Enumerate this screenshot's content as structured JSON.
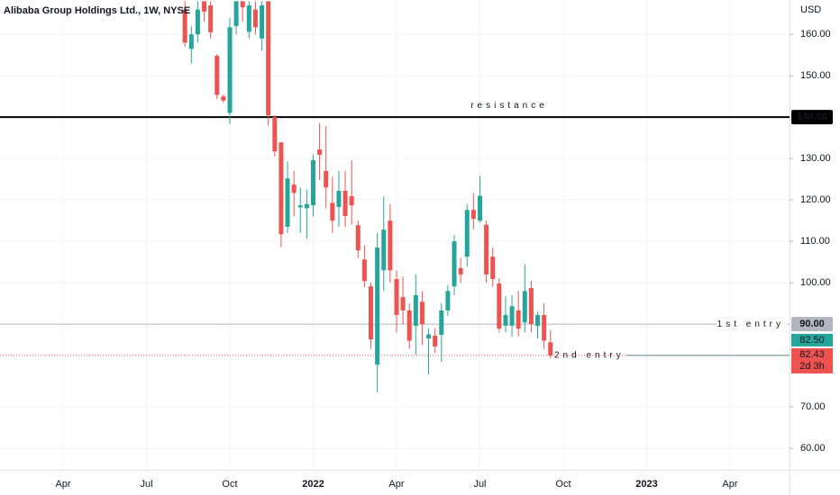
{
  "chart_data": {
    "type": "candlestick",
    "title": "Alibaba Group Holdings Ltd., 1W, NYSE",
    "currency": "USD",
    "up_color": "#26a69a",
    "down_color": "#ef5350",
    "grid": true,
    "ylim": [
      54.8,
      168.3
    ],
    "yticks": [
      {
        "value": 60,
        "label": "60.00"
      },
      {
        "value": 70,
        "label": "70.00"
      },
      {
        "value": 100,
        "label": "100.00"
      },
      {
        "value": 110,
        "label": "110.00"
      },
      {
        "value": 120,
        "label": "120.00"
      },
      {
        "value": 130,
        "label": "130.00"
      },
      {
        "value": 150,
        "label": "150.00"
      },
      {
        "value": 160,
        "label": "160.00"
      }
    ],
    "categories": [
      null,
      null,
      null,
      null,
      null,
      null,
      null,
      null,
      null,
      "Apr",
      null,
      null,
      null,
      null,
      null,
      null,
      null,
      null,
      null,
      null,
      null,
      null,
      "Jul",
      null,
      null,
      null,
      null,
      null,
      null,
      null,
      null,
      null,
      null,
      null,
      null,
      "Oct",
      null,
      null,
      null,
      null,
      null,
      null,
      null,
      null,
      null,
      null,
      null,
      null,
      "2022",
      null,
      null,
      null,
      null,
      null,
      null,
      null,
      null,
      null,
      null,
      null,
      null,
      "Apr",
      null,
      null,
      null,
      null,
      null,
      null,
      null,
      null,
      null,
      null,
      null,
      null,
      "Jul",
      null,
      null,
      null,
      null,
      null,
      null,
      null,
      null,
      null,
      null,
      null,
      null,
      "Oct",
      null,
      null,
      null,
      null,
      null,
      null,
      null,
      null,
      null,
      null,
      null,
      null,
      "2023",
      null,
      null,
      null,
      null,
      null,
      null,
      null,
      null,
      null,
      null,
      null,
      null,
      "Apr",
      null,
      null,
      null,
      null,
      null,
      null,
      null,
      null,
      null
    ],
    "open": [
      null,
      null,
      null,
      null,
      null,
      null,
      null,
      null,
      null,
      null,
      null,
      null,
      null,
      null,
      null,
      null,
      null,
      null,
      null,
      null,
      null,
      null,
      null,
      null,
      null,
      null,
      null,
      null,
      166,
      156.5,
      160,
      168,
      167,
      154.8,
      145,
      141,
      162,
      168,
      160.6,
      166,
      159,
      168,
      140,
      133.9,
      113.5,
      123.7,
      118.2,
      118,
      118.7,
      132.2,
      127,
      119.3,
      118.3,
      122.2,
      120.9,
      113.9,
      105.6,
      99.1,
      80.2,
      103,
      115,
      100.9,
      96.5,
      93.3,
      89.6,
      95.4,
      86.5,
      87.2,
      87.4,
      93.3,
      99.1,
      103.5,
      106.3,
      117.6,
      115,
      114,
      106.3,
      99.8,
      89.6,
      89.6,
      93.3,
      90.4,
      98.7,
      89.6,
      92.2,
      85.6,
      null,
      null,
      null,
      null,
      null,
      null,
      null,
      null,
      null,
      null,
      null,
      null,
      null,
      null,
      null,
      null,
      null,
      null,
      null,
      null,
      null,
      null,
      null,
      null,
      null,
      null,
      null,
      null,
      null,
      null,
      null,
      null,
      null,
      null,
      null,
      null,
      null
    ],
    "high": [
      null,
      null,
      null,
      null,
      null,
      null,
      null,
      null,
      null,
      null,
      null,
      null,
      null,
      null,
      null,
      null,
      null,
      null,
      null,
      null,
      null,
      null,
      null,
      null,
      null,
      null,
      null,
      null,
      168,
      162,
      168,
      168,
      168,
      155.2,
      145.5,
      164,
      168,
      168,
      168,
      168,
      168,
      168,
      140.5,
      134,
      129.3,
      127,
      123,
      122.5,
      131,
      138.5,
      137.8,
      125.6,
      127,
      127,
      129.6,
      115,
      109,
      100,
      112,
      120.8,
      119,
      103,
      101.5,
      95,
      102,
      98,
      89,
      89,
      95,
      99.5,
      111.5,
      106,
      119,
      121.6,
      125.8,
      115,
      108.5,
      101,
      96.7,
      97,
      98,
      104.5,
      100.5,
      93,
      95,
      88.5,
      null,
      null,
      null,
      null,
      null,
      null,
      null,
      null,
      null,
      null,
      null,
      null,
      null,
      null,
      null,
      null,
      null,
      null,
      null,
      null,
      null,
      null,
      null,
      null,
      null,
      null,
      null,
      null,
      null,
      null,
      null,
      null,
      null,
      null,
      null,
      null,
      null
    ],
    "low": [
      null,
      null,
      null,
      null,
      null,
      null,
      null,
      null,
      null,
      null,
      null,
      null,
      null,
      null,
      null,
      null,
      null,
      null,
      null,
      null,
      null,
      null,
      null,
      null,
      null,
      null,
      null,
      null,
      157,
      153,
      158,
      163,
      159,
      144.3,
      143.5,
      138.3,
      160,
      163,
      159,
      160,
      156,
      138,
      130.5,
      108.6,
      112,
      116,
      112,
      110.6,
      116,
      124.8,
      118,
      112,
      113.5,
      113.5,
      114,
      106,
      99,
      84,
      73.5,
      98,
      100,
      88,
      90,
      84,
      82.6,
      85,
      77.8,
      83,
      80.9,
      92,
      97,
      100,
      104,
      113,
      114.5,
      100,
      99,
      88,
      88,
      87,
      87,
      88,
      88,
      86.5,
      84,
      81.8,
      null,
      null,
      null,
      null,
      null,
      null,
      null,
      null,
      null,
      null,
      null,
      null,
      null,
      null,
      null,
      null,
      null,
      null,
      null,
      null,
      null,
      null,
      null,
      null,
      null,
      null,
      null,
      null,
      null,
      null,
      null,
      null,
      null,
      null,
      null,
      null,
      null
    ],
    "close": [
      null,
      null,
      null,
      null,
      null,
      null,
      null,
      null,
      null,
      null,
      null,
      null,
      null,
      null,
      null,
      null,
      null,
      null,
      null,
      null,
      null,
      null,
      null,
      null,
      null,
      null,
      null,
      null,
      158,
      160,
      166,
      165.5,
      160.5,
      145.4,
      144,
      161.7,
      168,
      166.5,
      167,
      161.7,
      167,
      140.4,
      131.7,
      111.7,
      125.2,
      121.7,
      118.7,
      119,
      129.6,
      130.9,
      123,
      115,
      122.2,
      116.1,
      118.7,
      107.8,
      100.4,
      86.3,
      108.5,
      112.8,
      103,
      92.2,
      93.3,
      86,
      97,
      90,
      87.5,
      84.6,
      93.3,
      98,
      110,
      102,
      117.6,
      115.4,
      121,
      102,
      100.9,
      88.9,
      92.2,
      94.3,
      88.9,
      98,
      90,
      92.2,
      86,
      82.43,
      null,
      null,
      null,
      null,
      null,
      null,
      null,
      null,
      null,
      null,
      null,
      null,
      null,
      null,
      null,
      null,
      null,
      null,
      null,
      null,
      null,
      null,
      null,
      null,
      null,
      null,
      null,
      null,
      null,
      null,
      null,
      null,
      null,
      null,
      null,
      null,
      null
    ],
    "horizontal_lines": [
      {
        "value": 140,
        "text": "resistance",
        "price_label": "140.00",
        "color": "#000000"
      },
      {
        "value": 90,
        "text": "1st entry",
        "price_label": "90.00",
        "color": "#b2b5be"
      },
      {
        "value": 82.43,
        "text": "2nd entry",
        "color": "#26a69a"
      }
    ],
    "price_tags": [
      {
        "value": 82.5,
        "label": "82.50",
        "color": "#26a69a"
      },
      {
        "value": 82.43,
        "label": "82.43",
        "sublabel": "2d 3h",
        "color": "#ef5350"
      }
    ]
  }
}
